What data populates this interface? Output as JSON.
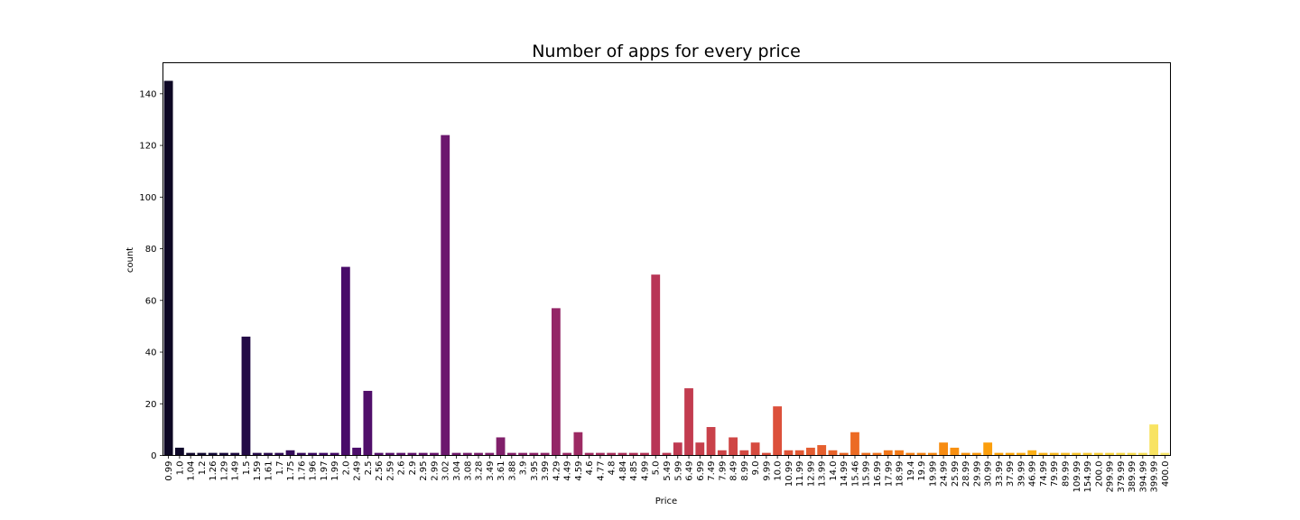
{
  "chart_data": {
    "type": "bar",
    "title": "Number of apps for every price",
    "xlabel": "Price",
    "ylabel": "count",
    "ylim": [
      0,
      152
    ],
    "yticks": [
      0,
      20,
      40,
      60,
      80,
      100,
      120,
      140
    ],
    "palette": "inferno",
    "categories": [
      "0.99",
      "1.0",
      "1.04",
      "1.2",
      "1.26",
      "1.29",
      "1.49",
      "1.5",
      "1.59",
      "1.61",
      "1.7",
      "1.75",
      "1.76",
      "1.96",
      "1.97",
      "1.99",
      "2.0",
      "2.49",
      "2.5",
      "2.56",
      "2.59",
      "2.6",
      "2.9",
      "2.95",
      "2.99",
      "3.02",
      "3.04",
      "3.08",
      "3.28",
      "3.49",
      "3.61",
      "3.88",
      "3.9",
      "3.95",
      "3.99",
      "4.29",
      "4.49",
      "4.59",
      "4.6",
      "4.77",
      "4.8",
      "4.84",
      "4.85",
      "4.99",
      "5.0",
      "5.49",
      "5.99",
      "6.49",
      "6.99",
      "7.49",
      "7.99",
      "8.49",
      "8.99",
      "9.0",
      "9.99",
      "10.0",
      "10.99",
      "11.99",
      "12.99",
      "13.99",
      "14.0",
      "14.99",
      "15.46",
      "15.99",
      "16.99",
      "17.99",
      "18.99",
      "19.4",
      "19.9",
      "19.99",
      "24.99",
      "25.99",
      "28.99",
      "29.99",
      "30.99",
      "33.99",
      "37.99",
      "39.99",
      "46.99",
      "74.99",
      "79.99",
      "89.99",
      "109.99",
      "154.99",
      "200.0",
      "299.99",
      "379.99",
      "389.99",
      "394.99",
      "399.99",
      "400.0"
    ],
    "values": [
      145,
      3,
      1,
      1,
      1,
      1,
      1,
      46,
      1,
      1,
      1,
      2,
      1,
      1,
      1,
      1,
      73,
      3,
      25,
      1,
      1,
      1,
      1,
      1,
      1,
      124,
      1,
      1,
      1,
      1,
      7,
      1,
      1,
      1,
      1,
      57,
      1,
      9,
      1,
      1,
      1,
      1,
      1,
      1,
      70,
      1,
      5,
      26,
      5,
      11,
      2,
      7,
      2,
      5,
      1,
      19,
      2,
      2,
      3,
      4,
      2,
      1,
      9,
      1,
      1,
      2,
      2,
      1,
      1,
      1,
      5,
      3,
      1,
      1,
      5,
      1,
      1,
      1,
      2,
      1,
      1,
      1,
      1,
      1,
      1,
      1,
      1,
      1,
      1,
      12,
      1
    ]
  }
}
